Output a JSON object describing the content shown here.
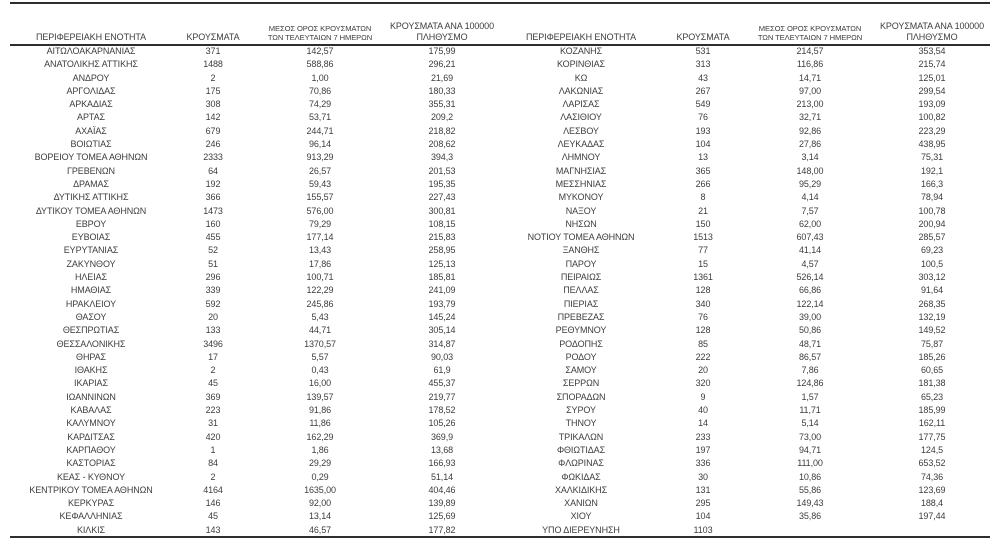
{
  "colors": {
    "background": "#ffffff",
    "text": "#3d3d3d",
    "rule": "#2e2e2e"
  },
  "table": {
    "headers": {
      "region": "ΠΕΡΙΦΕΡΕΙΑΚΗ ΕΝΟΤΗΤΑ",
      "cases": "ΚΡΟΥΣΜΑΤΑ",
      "avg7_line1": "ΜΕΣΟΣ ΟΡΟΣ ΚΡΟΥΣΜΑΤΩΝ",
      "avg7_line2": "ΤΩΝ ΤΕΛΕΥΤΑΙΩΝ 7 ΗΜΕΡΩΝ",
      "per100k_line1": "ΚΡΟΥΣΜΑΤΑ ΑΝΑ 100000",
      "per100k_line2": "ΠΛΗΘΥΣΜΟ"
    },
    "left_rows": [
      [
        "ΑΙΤΩΛΟΑΚΑΡΝΑΝΙΑΣ",
        "371",
        "142,57",
        "175,99"
      ],
      [
        "ΑΝΑΤΟΛΙΚΗΣ ΑΤΤΙΚΗΣ",
        "1488",
        "588,86",
        "296,21"
      ],
      [
        "ΑΝΔΡΟΥ",
        "2",
        "1,00",
        "21,69"
      ],
      [
        "ΑΡΓΟΛΙΔΑΣ",
        "175",
        "70,86",
        "180,33"
      ],
      [
        "ΑΡΚΑΔΙΑΣ",
        "308",
        "74,29",
        "355,31"
      ],
      [
        "ΑΡΤΑΣ",
        "142",
        "53,71",
        "209,2"
      ],
      [
        "ΑΧΑΪΑΣ",
        "679",
        "244,71",
        "218,82"
      ],
      [
        "ΒΟΙΩΤΙΑΣ",
        "246",
        "96,14",
        "208,62"
      ],
      [
        "ΒΟΡΕΙΟΥ ΤΟΜΕΑ ΑΘΗΝΩΝ",
        "2333",
        "913,29",
        "394,3"
      ],
      [
        "ΓΡΕΒΕΝΩΝ",
        "64",
        "26,57",
        "201,53"
      ],
      [
        "ΔΡΑΜΑΣ",
        "192",
        "59,43",
        "195,35"
      ],
      [
        "ΔΥΤΙΚΗΣ ΑΤΤΙΚΗΣ",
        "366",
        "155,57",
        "227,43"
      ],
      [
        "ΔΥΤΙΚΟΥ ΤΟΜΕΑ ΑΘΗΝΩΝ",
        "1473",
        "576,00",
        "300,81"
      ],
      [
        "ΕΒΡΟΥ",
        "160",
        "79,29",
        "108,15"
      ],
      [
        "ΕΥΒΟΙΑΣ",
        "455",
        "177,14",
        "215,83"
      ],
      [
        "ΕΥΡΥΤΑΝΙΑΣ",
        "52",
        "13,43",
        "258,95"
      ],
      [
        "ΖΑΚΥΝΘΟΥ",
        "51",
        "17,86",
        "125,13"
      ],
      [
        "ΗΛΕΙΑΣ",
        "296",
        "100,71",
        "185,81"
      ],
      [
        "ΗΜΑΘΙΑΣ",
        "339",
        "122,29",
        "241,09"
      ],
      [
        "ΗΡΑΚΛΕΙΟΥ",
        "592",
        "245,86",
        "193,79"
      ],
      [
        "ΘΑΣΟΥ",
        "20",
        "5,43",
        "145,24"
      ],
      [
        "ΘΕΣΠΡΩΤΙΑΣ",
        "133",
        "44,71",
        "305,14"
      ],
      [
        "ΘΕΣΣΑΛΟΝΙΚΗΣ",
        "3496",
        "1370,57",
        "314,87"
      ],
      [
        "ΘΗΡΑΣ",
        "17",
        "5,57",
        "90,03"
      ],
      [
        "ΙΘΑΚΗΣ",
        "2",
        "0,43",
        "61,9"
      ],
      [
        "ΙΚΑΡΙΑΣ",
        "45",
        "16,00",
        "455,37"
      ],
      [
        "ΙΩΑΝΝΙΝΩΝ",
        "369",
        "139,57",
        "219,77"
      ],
      [
        "ΚΑΒΑΛΑΣ",
        "223",
        "91,86",
        "178,52"
      ],
      [
        "ΚΑΛΥΜΝΟΥ",
        "31",
        "11,86",
        "105,26"
      ],
      [
        "ΚΑΡΔΙΤΣΑΣ",
        "420",
        "162,29",
        "369,9"
      ],
      [
        "ΚΑΡΠΑΘΟΥ",
        "1",
        "1,86",
        "13,68"
      ],
      [
        "ΚΑΣΤΟΡΙΑΣ",
        "84",
        "29,29",
        "166,93"
      ],
      [
        "ΚΕΑΣ - ΚΥΘΝΟΥ",
        "2",
        "0,29",
        "51,14"
      ],
      [
        "ΚΕΝΤΡΙΚΟΥ ΤΟΜΕΑ ΑΘΗΝΩΝ",
        "4164",
        "1635,00",
        "404,46"
      ],
      [
        "ΚΕΡΚΥΡΑΣ",
        "146",
        "92,00",
        "139,89"
      ],
      [
        "ΚΕΦΑΛΛΗΝΙΑΣ",
        "45",
        "13,14",
        "125,69"
      ],
      [
        "ΚΙΛΚΙΣ",
        "143",
        "46,57",
        "177,82"
      ]
    ],
    "right_rows": [
      [
        "ΚΟΖΑΝΗΣ",
        "531",
        "214,57",
        "353,54"
      ],
      [
        "ΚΟΡΙΝΘΙΑΣ",
        "313",
        "116,86",
        "215,74"
      ],
      [
        "ΚΩ",
        "43",
        "14,71",
        "125,01"
      ],
      [
        "ΛΑΚΩΝΙΑΣ",
        "267",
        "97,00",
        "299,54"
      ],
      [
        "ΛΑΡΙΣΑΣ",
        "549",
        "213,00",
        "193,09"
      ],
      [
        "ΛΑΣΙΘΙΟΥ",
        "76",
        "32,71",
        "100,82"
      ],
      [
        "ΛΕΣΒΟΥ",
        "193",
        "92,86",
        "223,29"
      ],
      [
        "ΛΕΥΚΑΔΑΣ",
        "104",
        "27,86",
        "438,95"
      ],
      [
        "ΛΗΜΝΟΥ",
        "13",
        "3,14",
        "75,31"
      ],
      [
        "ΜΑΓΝΗΣΙΑΣ",
        "365",
        "148,00",
        "192,1"
      ],
      [
        "ΜΕΣΣΗΝΙΑΣ",
        "266",
        "95,29",
        "166,3"
      ],
      [
        "ΜΥΚΟΝΟΥ",
        "8",
        "4,14",
        "78,94"
      ],
      [
        "ΝΑΞΟΥ",
        "21",
        "7,57",
        "100,78"
      ],
      [
        "ΝΗΣΩΝ",
        "150",
        "62,00",
        "200,94"
      ],
      [
        "ΝΟΤΙΟΥ ΤΟΜΕΑ ΑΘΗΝΩΝ",
        "1513",
        "607,43",
        "285,57"
      ],
      [
        "ΞΑΝΘΗΣ",
        "77",
        "41,14",
        "69,23"
      ],
      [
        "ΠΑΡΟΥ",
        "15",
        "4,57",
        "100,5"
      ],
      [
        "ΠΕΙΡΑΙΩΣ",
        "1361",
        "526,14",
        "303,12"
      ],
      [
        "ΠΕΛΛΑΣ",
        "128",
        "66,86",
        "91,64"
      ],
      [
        "ΠΙΕΡΙΑΣ",
        "340",
        "122,14",
        "268,35"
      ],
      [
        "ΠΡΕΒΕΖΑΣ",
        "76",
        "39,00",
        "132,19"
      ],
      [
        "ΡΕΘΥΜΝΟΥ",
        "128",
        "50,86",
        "149,52"
      ],
      [
        "ΡΟΔΟΠΗΣ",
        "85",
        "48,71",
        "75,87"
      ],
      [
        "ΡΟΔΟΥ",
        "222",
        "86,57",
        "185,26"
      ],
      [
        "ΣΑΜΟΥ",
        "20",
        "7,86",
        "60,65"
      ],
      [
        "ΣΕΡΡΩΝ",
        "320",
        "124,86",
        "181,38"
      ],
      [
        "ΣΠΟΡΑΔΩΝ",
        "9",
        "1,57",
        "65,23"
      ],
      [
        "ΣΥΡΟΥ",
        "40",
        "11,71",
        "185,99"
      ],
      [
        "ΤΗΝΟΥ",
        "14",
        "5,14",
        "162,11"
      ],
      [
        "ΤΡΙΚΑΛΩΝ",
        "233",
        "73,00",
        "177,75"
      ],
      [
        "ΦΘΙΩΤΙΔΑΣ",
        "197",
        "94,71",
        "124,5"
      ],
      [
        "ΦΛΩΡΙΝΑΣ",
        "336",
        "111,00",
        "653,52"
      ],
      [
        "ΦΩΚΙΔΑΣ",
        "30",
        "10,86",
        "74,36"
      ],
      [
        "ΧΑΛΚΙΔΙΚΗΣ",
        "131",
        "55,86",
        "123,69"
      ],
      [
        "ΧΑΝΙΩΝ",
        "295",
        "149,43",
        "188,4"
      ],
      [
        "ΧΙΟΥ",
        "104",
        "35,86",
        "197,44"
      ],
      [
        "ΥΠΟ ΔΙΕΡΕΥΝΗΣΗ",
        "1103",
        "",
        ""
      ]
    ]
  }
}
